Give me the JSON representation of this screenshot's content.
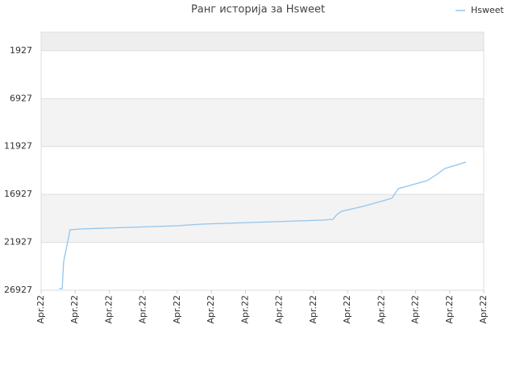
{
  "chart_data": {
    "type": "line",
    "title": "Ранг историја за Hsweet",
    "series": [
      {
        "name": "Hsweet",
        "color": "#92c5ee",
        "x": [
          0.52,
          0.62,
          0.66,
          0.78,
          0.85,
          1.16,
          1.87,
          2.58,
          3.29,
          4.0,
          4.71,
          5.42,
          6.13,
          6.84,
          7.55,
          8.26,
          8.57,
          8.69,
          8.83,
          9.45,
          10.3,
          10.49,
          11.34,
          11.63,
          11.86,
          12.48
        ],
        "values": [
          26759,
          26759,
          23982,
          21878,
          20616,
          20532,
          20448,
          20363,
          20279,
          20195,
          20027,
          19942,
          19858,
          19774,
          19690,
          19606,
          19522,
          19017,
          18680,
          18176,
          17334,
          16324,
          15483,
          14810,
          14220,
          13547
        ]
      }
    ],
    "xlim": [
      0,
      13
    ],
    "xticks": [
      {
        "value": 0,
        "label": "Apr.22"
      },
      {
        "value": 1,
        "label": "Apr.22"
      },
      {
        "value": 2,
        "label": "Apr.22"
      },
      {
        "value": 3,
        "label": "Apr.22"
      },
      {
        "value": 4,
        "label": "Apr.22"
      },
      {
        "value": 5,
        "label": "Apr.22"
      },
      {
        "value": 6,
        "label": "Apr.22"
      },
      {
        "value": 7,
        "label": "Apr.22"
      },
      {
        "value": 8,
        "label": "Apr.22"
      },
      {
        "value": 9,
        "label": "Apr.22"
      },
      {
        "value": 10,
        "label": "Apr.22"
      },
      {
        "value": 11,
        "label": "Apr.22"
      },
      {
        "value": 12,
        "label": "Apr.22"
      },
      {
        "value": 13,
        "label": "Apr.22"
      }
    ],
    "ylim": [
      26927,
      0
    ],
    "yticks": [
      1927,
      6927,
      11927,
      16927,
      21927,
      26927
    ],
    "grid": true,
    "legend": "top-right"
  }
}
